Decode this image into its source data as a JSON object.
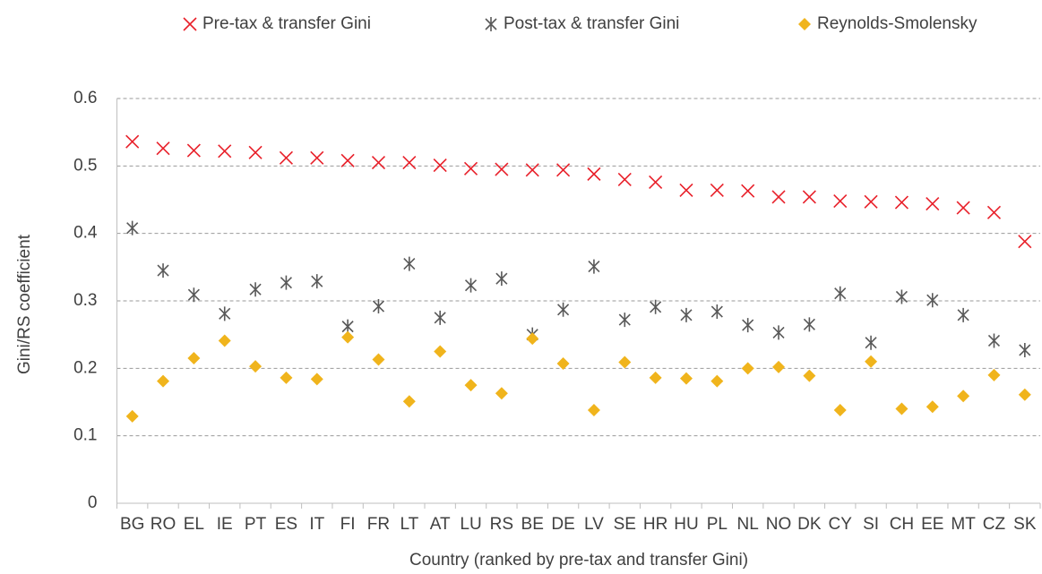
{
  "chart_data": {
    "type": "scatter",
    "x_label": "Country (ranked by pre-tax and transfer Gini)",
    "y_label": "Gini/RS coefficient",
    "categories": [
      "BG",
      "RO",
      "EL",
      "IE",
      "PT",
      "ES",
      "IT",
      "FI",
      "FR",
      "LT",
      "AT",
      "LU",
      "RS",
      "BE",
      "DE",
      "LV",
      "SE",
      "HR",
      "HU",
      "PL",
      "NL",
      "NO",
      "DK",
      "CY",
      "SI",
      "CH",
      "EE",
      "MT",
      "CZ",
      "SK"
    ],
    "series": [
      {
        "name": "Pre-tax & transfer Gini",
        "color": "#e8202a",
        "marker": "x",
        "values": [
          0.536,
          0.526,
          0.523,
          0.522,
          0.52,
          0.512,
          0.512,
          0.508,
          0.505,
          0.505,
          0.501,
          0.496,
          0.495,
          0.494,
          0.494,
          0.488,
          0.48,
          0.476,
          0.464,
          0.464,
          0.463,
          0.454,
          0.454,
          0.448,
          0.447,
          0.446,
          0.444,
          0.438,
          0.431,
          0.388
        ]
      },
      {
        "name": "Post-tax & transfer Gini",
        "color": "#595959",
        "marker": "asterisk",
        "values": [
          0.408,
          0.345,
          0.309,
          0.281,
          0.317,
          0.327,
          0.329,
          0.262,
          0.292,
          0.355,
          0.275,
          0.323,
          0.333,
          0.25,
          0.287,
          0.351,
          0.272,
          0.291,
          0.279,
          0.284,
          0.264,
          0.253,
          0.265,
          0.311,
          0.238,
          0.306,
          0.301,
          0.279,
          0.241,
          0.227
        ]
      },
      {
        "name": "Reynolds-Smolensky",
        "color": "#f0b41c",
        "marker": "diamond",
        "values": [
          0.129,
          0.181,
          0.215,
          0.241,
          0.203,
          0.186,
          0.184,
          0.246,
          0.213,
          0.151,
          0.225,
          0.175,
          0.163,
          0.244,
          0.207,
          0.138,
          0.209,
          0.186,
          0.185,
          0.181,
          0.2,
          0.202,
          0.189,
          0.138,
          0.21,
          0.14,
          0.143,
          0.159,
          0.19,
          0.161
        ]
      }
    ],
    "ylim": [
      0,
      0.6
    ],
    "yticks": [
      0,
      0.1,
      0.2,
      0.3,
      0.4,
      0.5,
      0.6
    ],
    "grid": true,
    "legend": "top"
  }
}
